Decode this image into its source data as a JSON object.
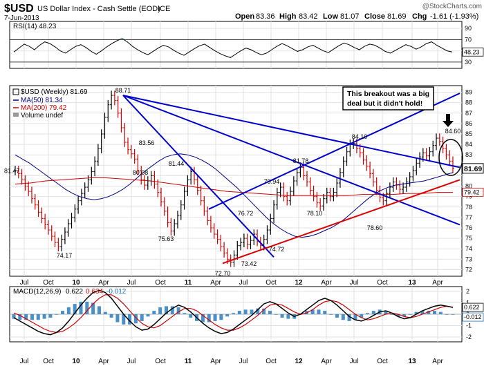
{
  "header": {
    "symbol": "$USD",
    "name": "US Dollar Index - Cash Settle (EOD)",
    "exchange": "ICE",
    "date": "7-Jun-2013",
    "watermark": "@StockCharts.com",
    "open_label": "Open",
    "open": "83.36",
    "high_label": "High",
    "high": "83.42",
    "low_label": "Low",
    "low": "81.07",
    "close_label": "Close",
    "close": "81.69",
    "chg_label": "Chg",
    "chg": "-1.61 (-1.93%)",
    "chg_prefix": "-1.61 (-1.93%)"
  },
  "colors": {
    "price_up": "#000000",
    "price_down": "#cc0000",
    "ma50": "#000080",
    "ma200": "#cc0000",
    "trend": "#0000cc",
    "support": "#dd0000",
    "macd_line": "#000000",
    "signal_line": "#cc0000",
    "histogram": "#4a90c8",
    "rsi_fill": "#2e8b57"
  },
  "chart_data": [
    {
      "type": "line",
      "panel": "rsi",
      "title": "RSI(14) 48.23",
      "ylim": [
        20,
        100
      ],
      "yticks": [
        30,
        50,
        70,
        90
      ],
      "reference_lines": [
        30,
        70
      ],
      "last_value_label": "48.23",
      "series": [
        {
          "name": "RSI(14)",
          "values": [
            48,
            55,
            62,
            58,
            52,
            60,
            66,
            63,
            57,
            50,
            46,
            52,
            58,
            61,
            56,
            49,
            44,
            50,
            57,
            63,
            68,
            72,
            66,
            58,
            52,
            47,
            43,
            49,
            55,
            60,
            57,
            51,
            46,
            42,
            48,
            54,
            59,
            62,
            56,
            50,
            45,
            41,
            38,
            44,
            50,
            55,
            52,
            47,
            43,
            46,
            52,
            58,
            63,
            59,
            54,
            49,
            52,
            57,
            60,
            55,
            50,
            47,
            53,
            59,
            64,
            61,
            56,
            52,
            58,
            62,
            60,
            55,
            49,
            46,
            51,
            56,
            61,
            58,
            53,
            57,
            63,
            66,
            60,
            55,
            50,
            48
          ]
        }
      ]
    },
    {
      "type": "line",
      "panel": "price",
      "title": "$USD (Weekly) 81.69",
      "ylim": [
        71.5,
        89.5
      ],
      "yticks": [
        72,
        73,
        74,
        75,
        76,
        77,
        78,
        79,
        80,
        81,
        82,
        83,
        84,
        85,
        86,
        87,
        88,
        89
      ],
      "ytick_labels": [
        "72",
        "73",
        "74",
        "75",
        "76",
        "77",
        "78",
        "79",
        "80",
        "",
        "",
        "83",
        "84",
        "85",
        "86",
        "87",
        "88",
        "89"
      ],
      "xticks": [
        "Jul",
        "Oct",
        "10",
        "Apr",
        "Jul",
        "Oct",
        "11",
        "Apr",
        "Jul",
        "Oct",
        "12",
        "Apr",
        "Jul",
        "Oct",
        "13",
        "Apr"
      ],
      "legend": [
        "$USD (Weekly) 81.69",
        "MA(50) 81.34",
        "MA(200) 79.42",
        "Volume undef"
      ],
      "last_price_label": "81.69",
      "ma200_label": "79.42",
      "left_label": "81.47",
      "annotation": "This breakout was a big deal but it didn't hold!",
      "annotation_lines": [
        "This breakout was a big",
        "deal but it didn't hold!"
      ],
      "peak_labels": [
        "88.71",
        "83.56",
        "80.08",
        "75.63",
        "74.17",
        "81.44",
        "76.72",
        "72.70",
        "73.42",
        "74.72",
        "79.94",
        "81.78",
        "78.10",
        "84.10",
        "78.60",
        "84.60"
      ],
      "series": [
        {
          "name": "$USD (Weekly)",
          "values": [
            81.5,
            81.2,
            80.6,
            80.0,
            79.5,
            78.8,
            78.2,
            77.5,
            76.9,
            76.3,
            75.8,
            75.2,
            74.6,
            74.2,
            74.9,
            75.6,
            76.4,
            77.0,
            77.8,
            78.6,
            79.3,
            79.9,
            80.6,
            81.4,
            82.4,
            83.6,
            85.0,
            86.6,
            87.8,
            88.7,
            88.2,
            87.0,
            85.6,
            84.2,
            83.5,
            83.1,
            82.6,
            81.5,
            80.6,
            80.1,
            80.5,
            81.0,
            80.2,
            79.4,
            78.5,
            77.6,
            76.5,
            75.7,
            76.4,
            77.2,
            78.2,
            79.5,
            80.6,
            81.4,
            80.6,
            79.6,
            78.6,
            77.6,
            76.7,
            76.0,
            75.4,
            74.9,
            74.2,
            73.6,
            73.0,
            72.7,
            73.4,
            74.3,
            74.6,
            75.0,
            74.4,
            74.8,
            75.4,
            74.7,
            74.3,
            74.9,
            75.8,
            76.9,
            78.2,
            79.4,
            79.9,
            79.0,
            78.6,
            79.5,
            80.5,
            81.3,
            81.8,
            81.0,
            80.4,
            79.6,
            79.0,
            78.4,
            78.1,
            78.8,
            79.4,
            79.0,
            79.4,
            80.3,
            81.3,
            82.4,
            83.3,
            84.0,
            84.1,
            83.6,
            83.2,
            82.5,
            81.9,
            81.2,
            80.4,
            79.6,
            78.9,
            78.6,
            79.3,
            79.9,
            80.4,
            80.1,
            79.7,
            79.9,
            80.4,
            80.9,
            81.5,
            82.2,
            82.8,
            83.2,
            82.9,
            83.3,
            83.9,
            84.6,
            84.3,
            83.6,
            83.0,
            82.4,
            81.7
          ]
        },
        {
          "name": "MA(50)",
          "values": [
            83.0,
            82.6,
            82.2,
            81.7,
            81.2,
            80.7,
            80.2,
            79.7,
            79.3,
            79.0,
            78.8,
            78.7,
            78.8,
            79.0,
            79.3,
            79.7,
            80.2,
            80.8,
            81.4,
            81.9,
            82.4,
            82.8,
            83.0,
            83.1,
            83.0,
            82.8,
            82.5,
            82.1,
            81.6,
            81.0,
            80.4,
            79.8,
            79.1,
            78.4,
            77.7,
            77.0,
            76.4,
            75.9,
            75.5,
            75.2,
            75.1,
            75.2,
            75.4,
            75.7,
            76.0,
            76.4,
            76.9,
            77.5,
            78.1,
            78.7,
            79.2,
            79.6,
            79.9,
            80.1,
            80.2,
            80.3,
            80.4,
            80.5,
            80.7,
            80.9,
            81.1,
            81.3
          ]
        },
        {
          "name": "MA(200)",
          "values": [
            80.2,
            80.3,
            80.5,
            80.6,
            80.7,
            80.8,
            80.8,
            80.7,
            80.6,
            80.5,
            80.3,
            80.1,
            79.9,
            79.7,
            79.5,
            79.4,
            79.3,
            79.2,
            79.1,
            79.1,
            79.1,
            79.1,
            79.1,
            79.2,
            79.2,
            79.2,
            79.3,
            79.3,
            79.4,
            79.4
          ]
        }
      ],
      "trendlines": [
        {
          "name": "downtrend-steep",
          "from": [
            "2010-06",
            88.7
          ],
          "to": [
            "2011-09",
            73.2
          ]
        },
        {
          "name": "downtrend-mid",
          "from": [
            "2010-06",
            88.7
          ],
          "to": [
            "2013-06",
            76.3
          ]
        },
        {
          "name": "downtrend-shallow",
          "from": [
            "2010-06",
            88.7
          ],
          "to": [
            "2013-06",
            81.8
          ]
        },
        {
          "name": "uptrend-channel",
          "from": [
            "2011-02",
            77.8
          ],
          "to": [
            "2013-06",
            88.9
          ]
        },
        {
          "name": "support",
          "from": [
            "2011-04",
            72.6
          ],
          "to": [
            "2013-06",
            80.6
          ]
        }
      ]
    },
    {
      "type": "line",
      "panel": "macd",
      "title": "MACD(12,26,9) 0.622, 0.634, -0.012",
      "ylim": [
        -2.3,
        2.3
      ],
      "yticks": [
        -2,
        -1,
        0,
        1,
        2
      ],
      "title_prefix": "MACD(12,26,9)",
      "macd_value": "0.622",
      "signal_value": "0.634",
      "hist_value": "-0.012",
      "last_macd_label": "0.622",
      "last_hist_label": "-0.012",
      "series": [
        {
          "name": "MACD",
          "values": [
            -0.3,
            -0.6,
            -0.9,
            -1.2,
            -1.5,
            -1.7,
            -1.8,
            -1.6,
            -1.2,
            -0.6,
            0.1,
            0.8,
            1.4,
            1.9,
            2.1,
            1.9,
            1.4,
            0.7,
            0.0,
            -0.6,
            -1.1,
            -1.4,
            -1.3,
            -0.9,
            -0.4,
            0.1,
            0.5,
            0.8,
            0.6,
            0.2,
            -0.3,
            -0.8,
            -1.2,
            -1.5,
            -1.7,
            -1.6,
            -1.3,
            -0.9,
            -0.5,
            -0.1,
            0.4,
            0.9,
            1.1,
            0.9,
            0.5,
            0.1,
            -0.2,
            0.0,
            0.4,
            0.8,
            1.2,
            1.4,
            1.2,
            0.8,
            0.3,
            -0.2,
            -0.5,
            -0.6,
            -0.4,
            -0.1,
            0.2,
            0.3,
            0.1,
            -0.2,
            -0.4,
            -0.3,
            0.0,
            0.3,
            0.5,
            0.7,
            0.8,
            0.7,
            0.6
          ]
        },
        {
          "name": "Signal",
          "values": [
            0.1,
            -0.1,
            -0.4,
            -0.7,
            -1.0,
            -1.3,
            -1.5,
            -1.6,
            -1.5,
            -1.2,
            -0.8,
            -0.3,
            0.3,
            0.9,
            1.4,
            1.7,
            1.7,
            1.4,
            0.9,
            0.3,
            -0.3,
            -0.8,
            -1.1,
            -1.2,
            -1.0,
            -0.6,
            -0.2,
            0.2,
            0.5,
            0.5,
            0.3,
            -0.1,
            -0.5,
            -0.9,
            -1.2,
            -1.4,
            -1.4,
            -1.2,
            -0.9,
            -0.5,
            -0.1,
            0.4,
            0.8,
            0.9,
            0.8,
            0.5,
            0.2,
            0.0,
            0.1,
            0.4,
            0.8,
            1.1,
            1.2,
            1.1,
            0.8,
            0.4,
            0.0,
            -0.3,
            -0.5,
            -0.4,
            -0.2,
            0.0,
            0.1,
            0.0,
            -0.2,
            -0.3,
            -0.2,
            0.0,
            0.2,
            0.4,
            0.6,
            0.7,
            0.6
          ]
        }
      ]
    }
  ]
}
